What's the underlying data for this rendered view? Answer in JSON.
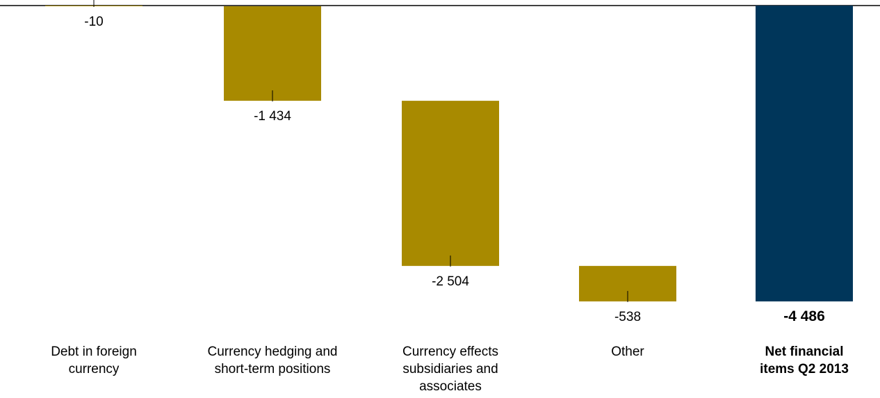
{
  "chart_data": {
    "type": "waterfall",
    "ylim": [
      -4550,
      0
    ],
    "categories": [
      "Debt in foreign currency",
      "Currency hedging and short-term positions",
      "Currency effects subsidiaries and associates",
      "Other",
      "Net financial items Q2 2013"
    ],
    "category_lines": [
      [
        "Debt in foreign",
        "currency"
      ],
      [
        "Currency hedging and",
        "short-term positions"
      ],
      [
        "Currency effects",
        "subsidiaries and",
        "associates"
      ],
      [
        "Other"
      ],
      [
        "Net financial",
        "items Q2 2013"
      ]
    ],
    "values": [
      -10,
      -1434,
      -2504,
      -538,
      -4486
    ],
    "value_labels": [
      "-10",
      "-1 434",
      "-2 504",
      "-538",
      "-4 486"
    ],
    "is_total": [
      false,
      false,
      false,
      false,
      true
    ],
    "colors": {
      "step": "#a88a00",
      "total": "#00365a",
      "axis": "#000000"
    }
  }
}
